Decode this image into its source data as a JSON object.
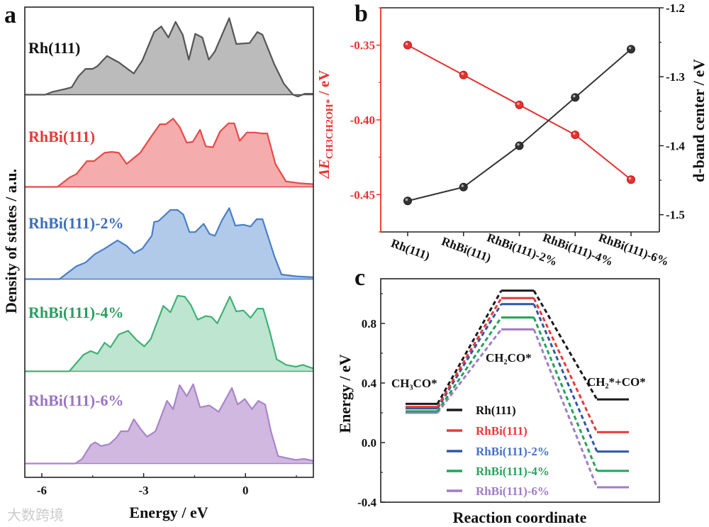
{
  "figure": {
    "panel_labels": [
      "a",
      "b",
      "c"
    ],
    "watermark": "大数跨境"
  },
  "chart_data": [
    {
      "panel": "a",
      "type": "area",
      "xlabel": "Energy / eV",
      "ylabel": "Density of states / a.u.",
      "xlim": [
        -6.5,
        2.0
      ],
      "ylim": [
        -0.15,
        4.95
      ],
      "xticks": [
        -6,
        -3,
        0
      ],
      "xtick_labels": [
        "-6",
        "-3",
        "0"
      ],
      "grid": false,
      "series": [
        {
          "name": "Rh(111)",
          "color": "#555555",
          "text_color": "#111111",
          "fill": "#b4b4b4",
          "offset": 4,
          "points": [
            [
              -6.5,
              0
            ],
            [
              -5.9,
              0
            ],
            [
              -5.69,
              0.03
            ],
            [
              -5.33,
              0.06
            ],
            [
              -5.12,
              0.08
            ],
            [
              -4.92,
              0.2
            ],
            [
              -4.71,
              0.28
            ],
            [
              -4.5,
              0.28
            ],
            [
              -4.36,
              0.31
            ],
            [
              -4.08,
              0.42
            ],
            [
              -3.73,
              0.35
            ],
            [
              -3.29,
              0.23
            ],
            [
              -3.04,
              0.37
            ],
            [
              -2.69,
              0.68
            ],
            [
              -2.48,
              0.74
            ],
            [
              -2.27,
              0.62
            ],
            [
              -2.06,
              0.79
            ],
            [
              -1.85,
              0.65
            ],
            [
              -1.67,
              0.38
            ],
            [
              -1.48,
              0.66
            ],
            [
              -1.27,
              0.62
            ],
            [
              -1.08,
              0.38
            ],
            [
              -0.9,
              0.47
            ],
            [
              -0.48,
              0.83
            ],
            [
              -0.27,
              0.55
            ],
            [
              0.12,
              0.56
            ],
            [
              0.35,
              0.68
            ],
            [
              0.5,
              0.65
            ],
            [
              0.85,
              0.33
            ],
            [
              1.13,
              0.12
            ],
            [
              1.4,
              0.0
            ],
            [
              1.54,
              -0.02
            ],
            [
              1.75,
              0.01
            ],
            [
              2.0,
              0.01
            ]
          ]
        },
        {
          "name": "RhBi(111)",
          "color": "#e8494a",
          "text_color": "#e8393a",
          "fill": "#f4a3a3",
          "offset": 3,
          "points": [
            [
              -6.5,
              0
            ],
            [
              -5.54,
              0
            ],
            [
              -5.19,
              0.1
            ],
            [
              -4.98,
              0.14
            ],
            [
              -4.67,
              0.28
            ],
            [
              -4.46,
              0.28
            ],
            [
              -4.15,
              0.37
            ],
            [
              -3.94,
              0.38
            ],
            [
              -3.73,
              0.37
            ],
            [
              -3.5,
              0.25
            ],
            [
              -3.1,
              0.37
            ],
            [
              -2.77,
              0.55
            ],
            [
              -2.52,
              0.68
            ],
            [
              -2.35,
              0.68
            ],
            [
              -2.13,
              0.74
            ],
            [
              -1.94,
              0.65
            ],
            [
              -1.73,
              0.48
            ],
            [
              -1.55,
              0.49
            ],
            [
              -1.34,
              0.62
            ],
            [
              -1.17,
              0.44
            ],
            [
              -0.96,
              0.43
            ],
            [
              -0.75,
              0.6
            ],
            [
              -0.5,
              0.69
            ],
            [
              -0.33,
              0.69
            ],
            [
              -0.17,
              0.5
            ],
            [
              0.04,
              0.59
            ],
            [
              0.29,
              0.59
            ],
            [
              0.46,
              0.58
            ],
            [
              0.64,
              0.58
            ],
            [
              0.88,
              0.25
            ],
            [
              1.19,
              0.06
            ],
            [
              1.6,
              0.04
            ],
            [
              2.0,
              0.03
            ]
          ]
        },
        {
          "name": "RhBi(111)-2%",
          "color": "#4a7fc4",
          "text_color": "#3d6fb8",
          "fill": "#aac4e8",
          "offset": 2,
          "points": [
            [
              -6.5,
              0
            ],
            [
              -5.48,
              0
            ],
            [
              -4.98,
              0.14
            ],
            [
              -4.71,
              0.18
            ],
            [
              -4.44,
              0.27
            ],
            [
              -4.15,
              0.33
            ],
            [
              -3.77,
              0.42
            ],
            [
              -3.5,
              0.36
            ],
            [
              -3.29,
              0.28
            ],
            [
              -3.04,
              0.33
            ],
            [
              -2.76,
              0.47
            ],
            [
              -2.69,
              0.62
            ],
            [
              -2.56,
              0.63
            ],
            [
              -2.21,
              0.75
            ],
            [
              -2.0,
              0.75
            ],
            [
              -1.83,
              0.7
            ],
            [
              -1.65,
              0.51
            ],
            [
              -1.48,
              0.51
            ],
            [
              -1.23,
              0.6
            ],
            [
              -1.06,
              0.49
            ],
            [
              -0.9,
              0.47
            ],
            [
              -0.69,
              0.64
            ],
            [
              -0.48,
              0.77
            ],
            [
              -0.3,
              0.58
            ],
            [
              -0.06,
              0.59
            ],
            [
              0.15,
              0.57
            ],
            [
              0.33,
              0.65
            ],
            [
              0.5,
              0.65
            ],
            [
              0.85,
              0.25
            ],
            [
              1.06,
              0.05
            ],
            [
              1.5,
              0.03
            ],
            [
              2.0,
              0.02
            ]
          ]
        },
        {
          "name": "RhBi(111)-4%",
          "color": "#3fb176",
          "text_color": "#2a9d5e",
          "fill": "#b7e2ca",
          "offset": 1,
          "points": [
            [
              -6.5,
              0
            ],
            [
              -5.19,
              0
            ],
            [
              -4.77,
              0.18
            ],
            [
              -4.56,
              0.22
            ],
            [
              -4.36,
              0.19
            ],
            [
              -4.15,
              0.31
            ],
            [
              -3.98,
              0.26
            ],
            [
              -3.73,
              0.4
            ],
            [
              -3.46,
              0.44
            ],
            [
              -3.21,
              0.34
            ],
            [
              -2.98,
              0.27
            ],
            [
              -2.79,
              0.35
            ],
            [
              -2.42,
              0.71
            ],
            [
              -2.21,
              0.64
            ],
            [
              -2.0,
              0.82
            ],
            [
              -1.79,
              0.81
            ],
            [
              -1.61,
              0.72
            ],
            [
              -1.41,
              0.56
            ],
            [
              -1.17,
              0.6
            ],
            [
              -1.0,
              0.59
            ],
            [
              -0.83,
              0.52
            ],
            [
              -0.46,
              0.81
            ],
            [
              -0.27,
              0.65
            ],
            [
              -0.06,
              0.66
            ],
            [
              0.15,
              0.58
            ],
            [
              0.35,
              0.68
            ],
            [
              0.52,
              0.68
            ],
            [
              0.71,
              0.44
            ],
            [
              0.92,
              0.13
            ],
            [
              1.2,
              0.07
            ],
            [
              1.48,
              0.05
            ],
            [
              1.69,
              0.07
            ],
            [
              2.0,
              0.03
            ]
          ]
        },
        {
          "name": "RhBi(111)-6%",
          "color": "#a985c9",
          "text_color": "#9a74c0",
          "fill": "#cbb0dd",
          "offset": 0,
          "points": [
            [
              -6.5,
              0
            ],
            [
              -5.02,
              0
            ],
            [
              -4.81,
              0.05
            ],
            [
              -4.56,
              0.2
            ],
            [
              -4.43,
              0.23
            ],
            [
              -4.25,
              0.19
            ],
            [
              -4.01,
              0.21
            ],
            [
              -3.8,
              0.28
            ],
            [
              -3.67,
              0.35
            ],
            [
              -3.46,
              0.35
            ],
            [
              -3.29,
              0.48
            ],
            [
              -3.08,
              0.37
            ],
            [
              -2.9,
              0.29
            ],
            [
              -2.65,
              0.35
            ],
            [
              -2.31,
              0.68
            ],
            [
              -2.13,
              0.59
            ],
            [
              -1.94,
              0.85
            ],
            [
              -1.73,
              0.73
            ],
            [
              -1.54,
              0.86
            ],
            [
              -1.34,
              0.61
            ],
            [
              -1.06,
              0.63
            ],
            [
              -0.79,
              0.56
            ],
            [
              -0.4,
              0.82
            ],
            [
              -0.23,
              0.64
            ],
            [
              -0.02,
              0.7
            ],
            [
              0.19,
              0.59
            ],
            [
              0.38,
              0.68
            ],
            [
              0.58,
              0.64
            ],
            [
              0.75,
              0.35
            ],
            [
              0.96,
              0.08
            ],
            [
              1.2,
              0.06
            ],
            [
              1.48,
              0.04
            ],
            [
              1.73,
              0.05
            ],
            [
              2.0,
              0.03
            ]
          ]
        }
      ]
    },
    {
      "panel": "b",
      "type": "line",
      "categories": [
        "Rh(111)",
        "RhBi(111)",
        "RhBi(111)-2%",
        "RhBi(111)-4%",
        "RhBi(111)-6%"
      ],
      "ylabel_left": {
        "symbol": "ΔE",
        "subscript": "CH3CH2OH*",
        "unit": " / eV"
      },
      "ylabel_right": "d-band center / eV",
      "ylim_left": [
        -0.475,
        -0.325
      ],
      "yticks_left": [
        -0.35,
        -0.4,
        -0.45
      ],
      "ytick_labels_left": [
        "-0.35",
        "-0.40",
        "-0.45"
      ],
      "ylim_right": [
        -1.525,
        -1.2
      ],
      "yticks_right": [
        -1.2,
        -1.3,
        -1.4,
        -1.5
      ],
      "ytick_labels_right": [
        "-1.2",
        "-1.3",
        "-1.4",
        "-1.5"
      ],
      "grid": false,
      "series": [
        {
          "name": "ΔE CH3CH2OH*",
          "axis": "left",
          "color": "#e8312f",
          "values": [
            -0.35,
            -0.37,
            -0.39,
            -0.41,
            -0.44
          ]
        },
        {
          "name": "d-band center",
          "axis": "right",
          "color": "#333333",
          "values": [
            -1.48,
            -1.46,
            -1.4,
            -1.33,
            -1.26
          ]
        }
      ]
    },
    {
      "panel": "c",
      "type": "line",
      "subtype": "energy-profile",
      "xlabel": "Reaction coordinate",
      "ylabel": "Energy / eV",
      "ylim": [
        -0.4,
        1.1
      ],
      "yticks": [
        0.8,
        0.4,
        0.0,
        -0.4
      ],
      "ytick_labels": [
        "0.8",
        "0.4",
        "0.0",
        "-0.4"
      ],
      "states": [
        "CH₃CO*",
        "CH₂CO*",
        "CH₂*+CO*"
      ],
      "legend_position": "bottom-center",
      "series": [
        {
          "name": "Rh(111)",
          "color": "#1a1a1a",
          "text_color": "#111111",
          "values": [
            0.26,
            1.02,
            0.29
          ]
        },
        {
          "name": "RhBi(111)",
          "color": "#e8393a",
          "text_color": "#e8393a",
          "values": [
            0.24,
            0.97,
            0.07
          ]
        },
        {
          "name": "RhBi(111)-2%",
          "color": "#2f58a4",
          "text_color": "#4472c4",
          "values": [
            0.23,
            0.93,
            -0.06
          ]
        },
        {
          "name": "RhBi(111)-4%",
          "color": "#22a35a",
          "text_color": "#2aa35e",
          "values": [
            0.21,
            0.84,
            -0.19
          ]
        },
        {
          "name": "RhBi(111)-6%",
          "color": "#a07cc5",
          "text_color": "#a07cc5",
          "values": [
            0.2,
            0.76,
            -0.3
          ]
        }
      ]
    }
  ]
}
